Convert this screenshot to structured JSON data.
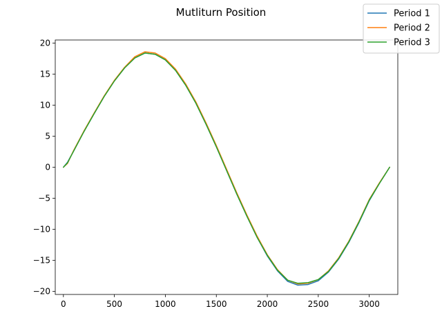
{
  "chart_data": {
    "type": "line",
    "title": "Mutliturn Position",
    "xlabel": "",
    "ylabel": "",
    "xlim": [
      -80,
      3280
    ],
    "ylim": [
      -20.5,
      20.5
    ],
    "xticks": [
      0,
      500,
      1000,
      1500,
      2000,
      2500,
      3000
    ],
    "yticks": [
      -20,
      -15,
      -10,
      -5,
      0,
      5,
      10,
      15,
      20
    ],
    "grid": false,
    "legend_position": "top-right",
    "series": [
      {
        "name": "Period 1",
        "color": "#1f77b4",
        "x": [
          0,
          40,
          100,
          200,
          300,
          400,
          500,
          600,
          700,
          800,
          900,
          1000,
          1100,
          1200,
          1300,
          1400,
          1500,
          1600,
          1700,
          1800,
          1900,
          2000,
          2100,
          2200,
          2300,
          2400,
          2500,
          2600,
          2700,
          2800,
          2900,
          3000,
          3100,
          3200
        ],
        "values": [
          0,
          0.8,
          2.6,
          5.7,
          8.6,
          11.4,
          13.9,
          16.0,
          17.6,
          18.4,
          18.2,
          17.3,
          15.6,
          13.2,
          10.3,
          6.9,
          3.3,
          -0.5,
          -4.3,
          -7.9,
          -11.3,
          -14.3,
          -16.7,
          -18.4,
          -19.0,
          -18.9,
          -18.3,
          -16.9,
          -14.8,
          -12.1,
          -8.9,
          -5.4,
          -2.6,
          0
        ]
      },
      {
        "name": "Period 2",
        "color": "#ff7f0e",
        "x": [
          0,
          40,
          100,
          200,
          300,
          400,
          500,
          600,
          700,
          800,
          900,
          1000,
          1100,
          1200,
          1300,
          1400,
          1500,
          1600,
          1700,
          1800,
          1900,
          2000,
          2100,
          2200,
          2300,
          2400,
          2500,
          2600,
          2700,
          2800,
          2900,
          3000,
          3100,
          3200
        ],
        "values": [
          0,
          0.6,
          2.7,
          5.8,
          8.7,
          11.5,
          14.0,
          16.1,
          17.8,
          18.6,
          18.4,
          17.5,
          15.8,
          13.4,
          10.5,
          7.1,
          3.5,
          -0.3,
          -4.1,
          -7.7,
          -11.1,
          -14.1,
          -16.5,
          -18.2,
          -18.8,
          -18.7,
          -18.1,
          -16.7,
          -14.6,
          -11.9,
          -8.7,
          -5.2,
          -2.5,
          0
        ]
      },
      {
        "name": "Period 3",
        "color": "#2ca02c",
        "x": [
          0,
          40,
          100,
          200,
          300,
          400,
          500,
          600,
          700,
          800,
          900,
          1000,
          1100,
          1200,
          1300,
          1400,
          1500,
          1600,
          1700,
          1800,
          1900,
          2000,
          2100,
          2200,
          2300,
          2400,
          2500,
          2600,
          2700,
          2800,
          2900,
          3000,
          3100,
          3200
        ],
        "values": [
          0,
          0.7,
          2.6,
          5.7,
          8.6,
          11.4,
          13.9,
          16.0,
          17.6,
          18.4,
          18.2,
          17.3,
          15.6,
          13.2,
          10.3,
          6.9,
          3.3,
          -0.5,
          -4.3,
          -7.9,
          -11.3,
          -14.2,
          -16.6,
          -18.2,
          -18.7,
          -18.6,
          -18.1,
          -16.8,
          -14.7,
          -12.0,
          -8.8,
          -5.3,
          -2.6,
          0
        ]
      }
    ]
  }
}
